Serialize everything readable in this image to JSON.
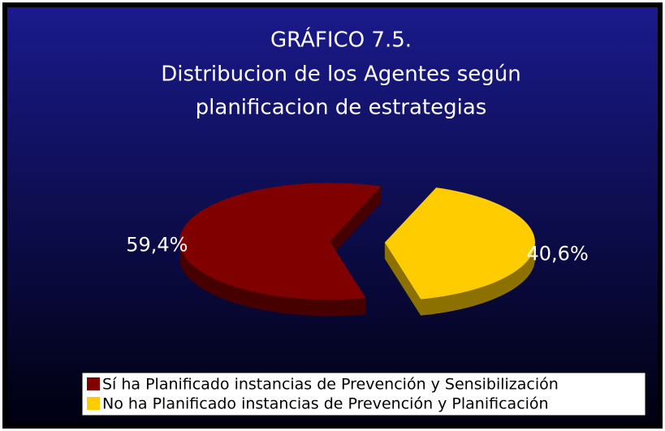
{
  "chart_data": {
    "type": "pie",
    "title": [
      "GRÁFICO 7.5.",
      "Distribucion de los Agentes según",
      "planificacion de estrategias"
    ],
    "categories": [
      "Sí ha Planificado instancias de Prevención y Sensibilización",
      "No ha Planificado instancias de Prevención y Planificación"
    ],
    "values": [
      59.4,
      40.6
    ],
    "value_labels": [
      "59,4%",
      "40,6%"
    ],
    "colors": [
      "#800000",
      "#ffcc00"
    ],
    "legend": "bottom"
  }
}
